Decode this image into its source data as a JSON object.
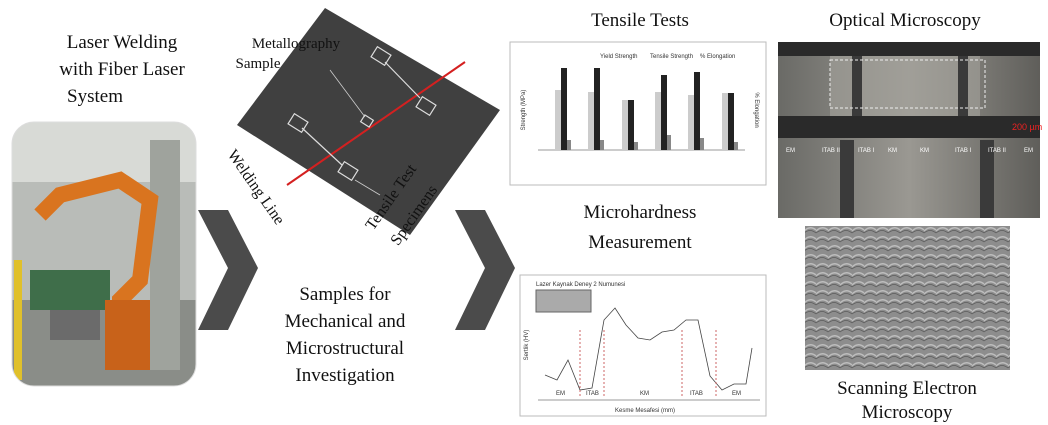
{
  "laser_welding": {
    "title_lines": [
      "Laser Welding",
      "with Fiber Laser",
      "System"
    ]
  },
  "sample": {
    "metallography_lines": [
      "Metallography",
      "Sample"
    ],
    "welding_line": "Welding Line",
    "specimens_lines": [
      "Tensile Test",
      "Specimens"
    ]
  },
  "samples_caption": {
    "lines": [
      "Samples for",
      "Mechanical and",
      "Microstructural",
      "Investigation"
    ]
  },
  "tensile": {
    "title": "Tensile Tests",
    "legend": [
      "Yield Strength",
      "Tensile Strength",
      "% Elongation"
    ],
    "y_label": "Strength (MPa)",
    "y2_label": "% Elongation"
  },
  "microhardness": {
    "title_lines": [
      "Microhardness",
      "Measurement"
    ],
    "chart_title": "Lazer Kaynak Deney 2 Numunesi",
    "zones": [
      "EM",
      "ITAB",
      "KM",
      "ITAB",
      "EM"
    ],
    "x_label": "Kesme Mesafesi (mm)",
    "y_label": "Sertlik (HV)"
  },
  "optical": {
    "title": "Optical Microscopy",
    "scale": "200 µm",
    "zones": [
      "EM",
      "ITAB II",
      "ITAB I",
      "KM",
      "KM",
      "ITAB I",
      "ITAB II",
      "EM"
    ]
  },
  "sem": {
    "title_lines": [
      "Scanning Electron",
      "Microscopy"
    ]
  }
}
